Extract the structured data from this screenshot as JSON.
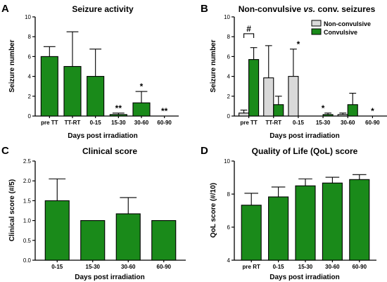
{
  "colors": {
    "convulsive": "#1a8a1a",
    "non_convulsive": "#d9d9d9",
    "axis": "#000000"
  },
  "chart_data": [
    {
      "panel": "A",
      "type": "bar",
      "title": "Seizure activity",
      "xlabel": "Days post irradiation",
      "ylabel": "Seizure number",
      "ylim": [
        0,
        10
      ],
      "yticks": [
        "0",
        "2",
        "4",
        "6",
        "8",
        "10"
      ],
      "categories": [
        "pre TT",
        "TT-RT",
        "0-15",
        "15-30",
        "30-60",
        "60-90"
      ],
      "series": [
        {
          "color_key": "convulsive",
          "values": [
            6.0,
            5.0,
            4.0,
            0.15,
            1.33,
            0
          ],
          "errors": [
            1.0,
            3.5,
            2.75,
            0.15,
            1.15,
            0
          ]
        }
      ],
      "annotations": [
        "",
        "",
        "",
        "**",
        "*",
        "**"
      ]
    },
    {
      "panel": "B",
      "type": "bar",
      "title": "Non-convulsive vs. conv. seizures",
      "title_parts": [
        "Non-convulsive ",
        "vs.",
        " conv. seizures"
      ],
      "xlabel": "Days post irradiation",
      "ylabel": "Seizure number",
      "ylim": [
        0,
        10
      ],
      "yticks": [
        "0",
        "2",
        "4",
        "6",
        "8",
        "10"
      ],
      "categories": [
        "pre TT",
        "TT-RT",
        "0-15",
        "15-30",
        "30-60",
        "60-90"
      ],
      "legend": [
        "Non-convulsive",
        "Convulsive"
      ],
      "series": [
        {
          "name": "Non-convulsive",
          "color_key": "non_convulsive",
          "values": [
            0.3,
            3.85,
            4.0,
            0,
            0.15,
            0
          ],
          "errors": [
            0.3,
            3.25,
            2.75,
            0,
            0.15,
            0
          ]
        },
        {
          "name": "Convulsive",
          "color_key": "convulsive",
          "values": [
            5.7,
            1.15,
            0,
            0.15,
            1.15,
            0
          ],
          "errors": [
            1.2,
            0.85,
            0,
            0.15,
            1.15,
            0
          ]
        }
      ],
      "annotations": [
        "",
        "",
        "*",
        "*",
        "",
        "*"
      ],
      "bracket_label": "#"
    },
    {
      "panel": "C",
      "type": "bar",
      "title": "Clinical score",
      "xlabel": "Days post irradiation",
      "ylabel": "Clinical score (#/5)",
      "ylim": [
        0,
        2.5
      ],
      "yticks": [
        "0.0",
        "0.5",
        "1.0",
        "1.5",
        "2.0",
        "2.5"
      ],
      "categories": [
        "0-15",
        "15-30",
        "30-60",
        "60-90"
      ],
      "series": [
        {
          "color_key": "convulsive",
          "values": [
            1.5,
            1.0,
            1.17,
            1.0
          ],
          "errors": [
            0.55,
            0,
            0.41,
            0
          ]
        }
      ]
    },
    {
      "panel": "D",
      "type": "bar",
      "title": "Quality of Life (QoL) score",
      "xlabel": "Days post irradiation",
      "ylabel": "QoL score (#/10)",
      "ylim": [
        4,
        10
      ],
      "yticks": [
        "4",
        "6",
        "8",
        "10"
      ],
      "categories": [
        "pre RT",
        "0-15",
        "15-30",
        "30-60",
        "60-90"
      ],
      "series": [
        {
          "color_key": "convulsive",
          "values": [
            7.33,
            7.83,
            8.5,
            8.67,
            8.88
          ],
          "errors": [
            0.72,
            0.6,
            0.42,
            0.35,
            0.3
          ]
        }
      ]
    }
  ]
}
